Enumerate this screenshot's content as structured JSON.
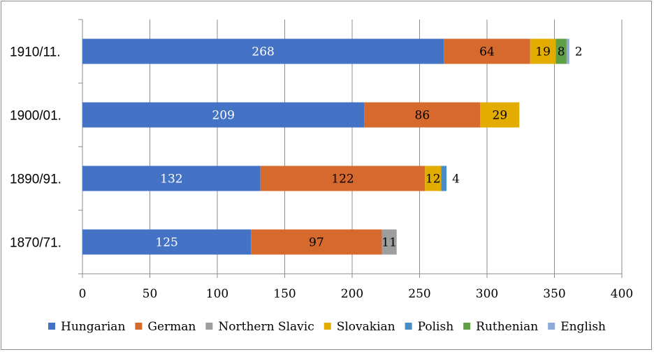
{
  "chart_data": {
    "type": "bar",
    "orientation": "horizontal",
    "stacked": true,
    "title": "",
    "xlabel": "",
    "ylabel": "",
    "xlim": [
      0,
      400
    ],
    "xticks": [
      0,
      50,
      100,
      150,
      200,
      250,
      300,
      350,
      400
    ],
    "grid": true,
    "legend_position": "bottom",
    "categories": [
      "1910/11.",
      "1900/01.",
      "1890/91.",
      "1870/71."
    ],
    "series": [
      {
        "name": "Hungarian",
        "color": "#4472C4",
        "values": [
          268,
          209,
          132,
          125
        ],
        "label_color": "#ffffff"
      },
      {
        "name": "German",
        "color": "#D5692E",
        "values": [
          64,
          86,
          122,
          97
        ],
        "label_color": "#000000"
      },
      {
        "name": "Northern Slavic",
        "color": "#9E9E9E",
        "values": [
          0,
          0,
          0,
          11
        ],
        "label_color": "#000000"
      },
      {
        "name": "Slovakian",
        "color": "#E2AC00",
        "values": [
          19,
          29,
          12,
          0
        ],
        "label_color": "#000000"
      },
      {
        "name": "Polish",
        "color": "#4A8CC4",
        "values": [
          0,
          0,
          4,
          0
        ],
        "label_color": "#000000"
      },
      {
        "name": "Ruthenian",
        "color": "#5FA046",
        "values": [
          8,
          0,
          0,
          0
        ],
        "label_color": "#000000"
      },
      {
        "name": "English",
        "color": "#8EA9DB",
        "values": [
          2,
          0,
          0,
          0
        ],
        "label_color": "#000000"
      }
    ]
  }
}
